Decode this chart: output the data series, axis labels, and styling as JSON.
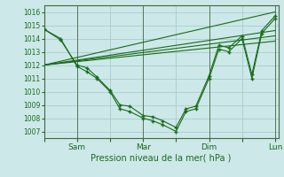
{
  "background_color": "#cce8e8",
  "grid_color": "#aacccc",
  "line_color": "#1a6b1a",
  "marker_color": "#1a6b1a",
  "xlabel": "Pression niveau de la mer( hPa )",
  "ylim": [
    1006.5,
    1016.5
  ],
  "yticks": [
    1007,
    1008,
    1009,
    1010,
    1011,
    1012,
    1013,
    1014,
    1015,
    1016
  ],
  "xtick_labels": [
    "",
    "Sam",
    "",
    "Mar",
    "",
    "Dim",
    "",
    "Lun"
  ],
  "xtick_positions": [
    0,
    1,
    2,
    3,
    4,
    5,
    6,
    7
  ],
  "vline_positions": [
    1,
    3,
    5,
    7
  ],
  "series1_x": [
    0,
    0.5,
    1.0,
    1.3,
    1.6,
    2.0,
    2.3,
    2.6,
    3.0,
    3.3,
    3.6,
    4.0,
    4.3,
    4.6,
    5.0,
    5.3,
    5.6,
    6.0,
    6.3,
    6.6,
    7.0
  ],
  "series1_y": [
    1014.7,
    1014.0,
    1011.9,
    1011.5,
    1011.0,
    1010.0,
    1008.7,
    1008.5,
    1008.0,
    1007.8,
    1007.5,
    1007.0,
    1008.5,
    1008.7,
    1011.0,
    1013.2,
    1013.0,
    1014.0,
    1011.0,
    1014.4,
    1015.5
  ],
  "series2_x": [
    0,
    0.5,
    1.0,
    1.3,
    1.6,
    2.0,
    2.3,
    2.6,
    3.0,
    3.3,
    3.6,
    4.0,
    4.3,
    4.6,
    5.0,
    5.3,
    5.6,
    6.0,
    6.3,
    6.6,
    7.0
  ],
  "series2_y": [
    1014.7,
    1013.9,
    1012.0,
    1011.8,
    1011.1,
    1010.1,
    1009.0,
    1008.9,
    1008.2,
    1008.1,
    1007.8,
    1007.3,
    1008.7,
    1008.9,
    1011.2,
    1013.5,
    1013.3,
    1014.2,
    1011.3,
    1014.6,
    1015.7
  ],
  "trend_lines": [
    {
      "x": [
        0.0,
        7.0
      ],
      "y": [
        1012.0,
        1013.8
      ]
    },
    {
      "x": [
        0.0,
        7.0
      ],
      "y": [
        1012.0,
        1014.2
      ]
    },
    {
      "x": [
        0.0,
        7.0
      ],
      "y": [
        1012.0,
        1014.6
      ]
    },
    {
      "x": [
        0.0,
        7.0
      ],
      "y": [
        1012.0,
        1016.0
      ]
    }
  ],
  "xlim": [
    0.0,
    7.1
  ]
}
